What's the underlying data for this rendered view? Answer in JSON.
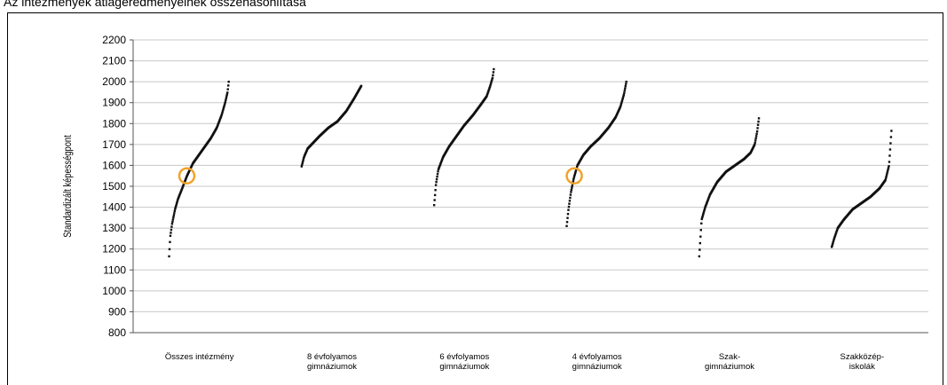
{
  "page": {
    "title": "Az intézmények átlageredményeinek összehasonlítása"
  },
  "chart_data": {
    "type": "scatter",
    "title": "Az intézmények átlageredményeinek összehasonlítása",
    "ylabel": "Standardizált képességpont",
    "xlabel": "",
    "ylim": [
      800,
      2200
    ],
    "yticks": [
      800,
      900,
      1000,
      1100,
      1200,
      1300,
      1400,
      1500,
      1600,
      1700,
      1800,
      1900,
      2000,
      2100,
      2200
    ],
    "grid": true,
    "categories": [
      [
        "Összes intézmény"
      ],
      [
        "8 évfolyamos",
        "gimnáziumok"
      ],
      [
        "6 évfolyamos",
        "gimnáziumok"
      ],
      [
        "4 évfolyamos",
        "gimnáziumok"
      ],
      [
        "Szak-",
        "gimnáziumok"
      ],
      [
        "Szakközép-",
        "iskolák"
      ]
    ],
    "series": [
      {
        "min": 1165,
        "max": 2000,
        "curve": [
          [
            0,
            1165
          ],
          [
            0.02,
            1260
          ],
          [
            0.05,
            1320
          ],
          [
            0.1,
            1390
          ],
          [
            0.15,
            1440
          ],
          [
            0.22,
            1490
          ],
          [
            0.3,
            1550
          ],
          [
            0.4,
            1610
          ],
          [
            0.5,
            1650
          ],
          [
            0.6,
            1690
          ],
          [
            0.7,
            1730
          ],
          [
            0.8,
            1780
          ],
          [
            0.88,
            1840
          ],
          [
            0.94,
            1900
          ],
          [
            0.98,
            1950
          ],
          [
            1,
            2000
          ]
        ],
        "highlight": 1550
      },
      {
        "min": 1595,
        "max": 1980,
        "curve": [
          [
            0,
            1595
          ],
          [
            0.04,
            1640
          ],
          [
            0.1,
            1680
          ],
          [
            0.2,
            1710
          ],
          [
            0.3,
            1740
          ],
          [
            0.45,
            1780
          ],
          [
            0.6,
            1810
          ],
          [
            0.75,
            1860
          ],
          [
            0.88,
            1920
          ],
          [
            0.96,
            1960
          ],
          [
            1,
            1980
          ]
        ]
      },
      {
        "min": 1410,
        "max": 2060,
        "curve": [
          [
            0,
            1410
          ],
          [
            0.03,
            1510
          ],
          [
            0.07,
            1580
          ],
          [
            0.15,
            1640
          ],
          [
            0.25,
            1690
          ],
          [
            0.35,
            1730
          ],
          [
            0.5,
            1790
          ],
          [
            0.65,
            1840
          ],
          [
            0.78,
            1890
          ],
          [
            0.88,
            1930
          ],
          [
            0.94,
            1980
          ],
          [
            0.98,
            2020
          ],
          [
            1,
            2060
          ]
        ]
      },
      {
        "min": 1310,
        "max": 2000,
        "curve": [
          [
            0,
            1310
          ],
          [
            0.03,
            1390
          ],
          [
            0.07,
            1470
          ],
          [
            0.12,
            1540
          ],
          [
            0.18,
            1600
          ],
          [
            0.28,
            1650
          ],
          [
            0.4,
            1690
          ],
          [
            0.55,
            1730
          ],
          [
            0.7,
            1780
          ],
          [
            0.82,
            1830
          ],
          [
            0.9,
            1880
          ],
          [
            0.96,
            1940
          ],
          [
            1,
            2000
          ]
        ],
        "highlight": 1550
      },
      {
        "min": 1165,
        "max": 1825,
        "curve": [
          [
            0,
            1165
          ],
          [
            0.04,
            1340
          ],
          [
            0.1,
            1400
          ],
          [
            0.18,
            1460
          ],
          [
            0.3,
            1520
          ],
          [
            0.45,
            1570
          ],
          [
            0.6,
            1600
          ],
          [
            0.75,
            1630
          ],
          [
            0.86,
            1660
          ],
          [
            0.93,
            1700
          ],
          [
            0.97,
            1760
          ],
          [
            1,
            1825
          ]
        ]
      },
      {
        "min": 1210,
        "max": 1765,
        "curve": [
          [
            0,
            1210
          ],
          [
            0.04,
            1250
          ],
          [
            0.1,
            1300
          ],
          [
            0.2,
            1340
          ],
          [
            0.35,
            1390
          ],
          [
            0.5,
            1420
          ],
          [
            0.65,
            1450
          ],
          [
            0.8,
            1490
          ],
          [
            0.9,
            1530
          ],
          [
            0.96,
            1600
          ],
          [
            1,
            1765
          ]
        ]
      }
    ],
    "colors": {
      "points": "#111111",
      "highlight": "#f0a32b",
      "grid": "#c8c8c8",
      "axis": "#555555"
    }
  }
}
